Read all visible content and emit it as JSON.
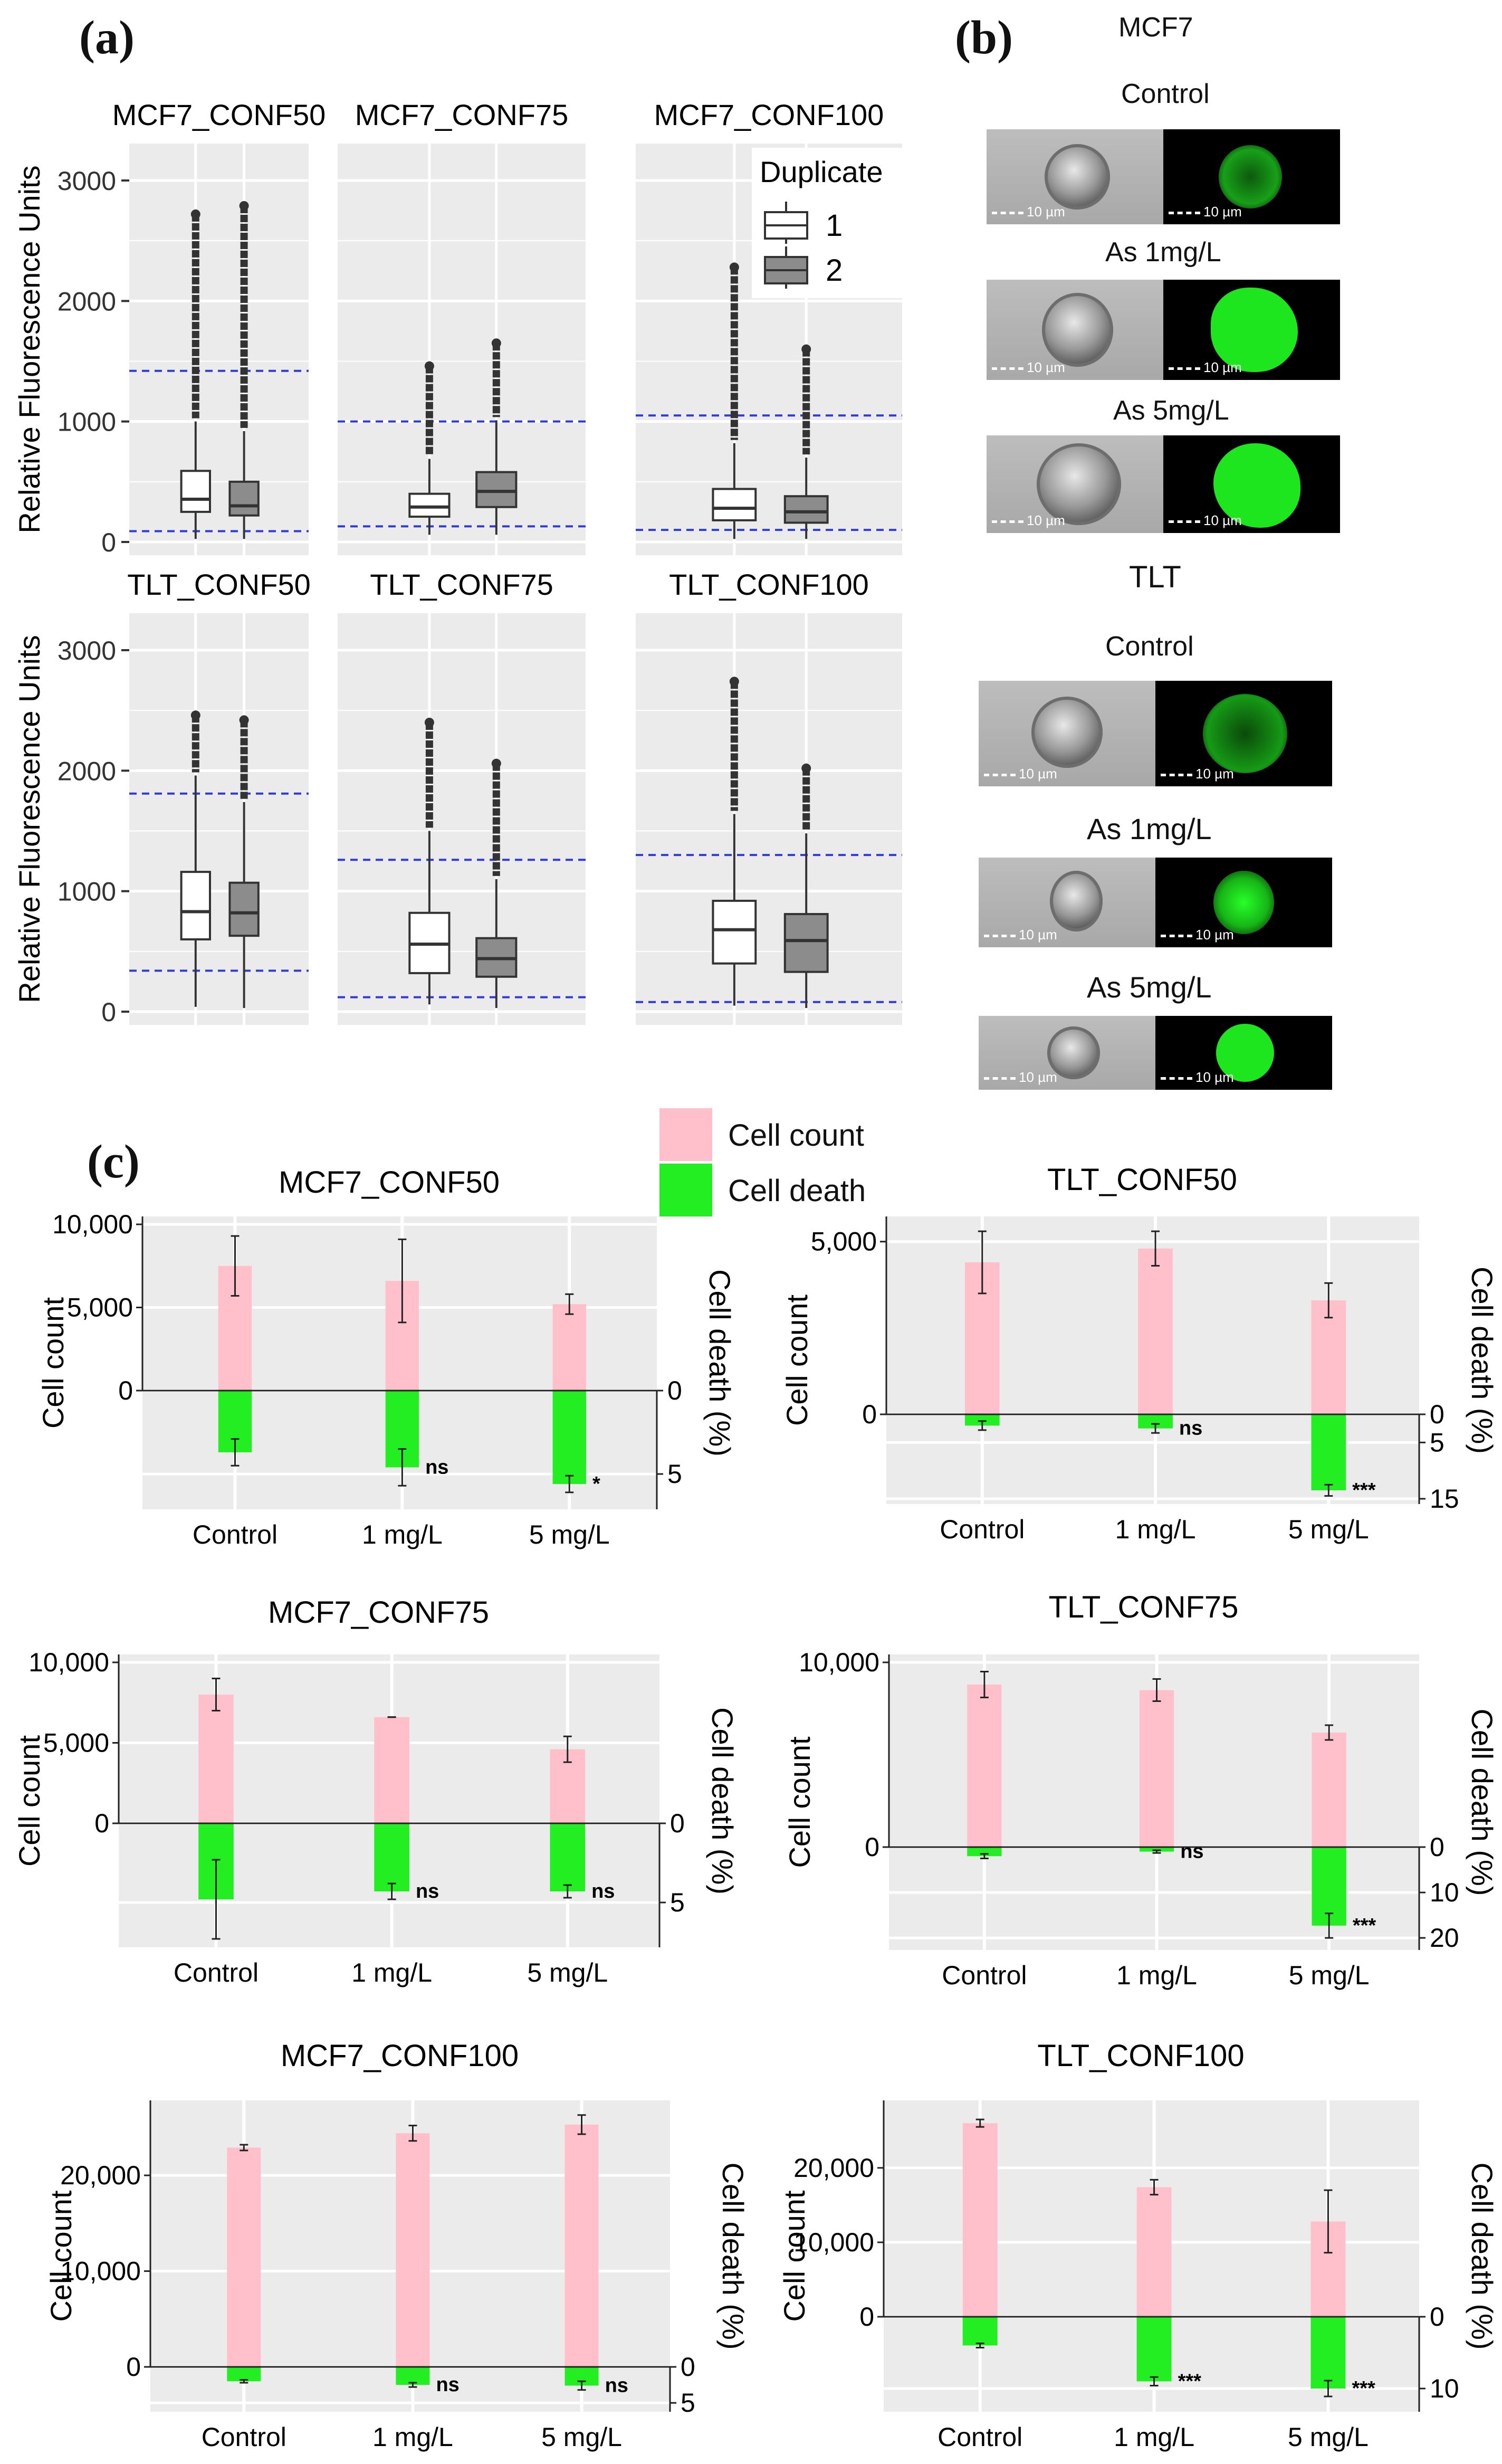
{
  "panel_labels": {
    "a": "(a)",
    "b": "(b)",
    "c": "(c)"
  },
  "colors": {
    "panel_bg": "#ebebeb",
    "grid": "#ffffff",
    "dashed": "#2f3cd6",
    "box1": "#ffffff",
    "box2": "#8c8c8c",
    "count": "#ffc0cb",
    "death": "#22ee22"
  },
  "panel_a": {
    "ylabel": "Relative Fluorescence Units",
    "legend_title": "Duplicate",
    "legend_items": [
      "1",
      "2"
    ],
    "yticks": [
      "0",
      "1000",
      "2000",
      "3000"
    ]
  },
  "chart_data": [
    {
      "type": "box",
      "title": "MCF7_CONF50",
      "ylim": [
        0,
        3000
      ],
      "dashed": [
        90,
        1420
      ],
      "boxes": [
        {
          "dup": "1",
          "q1": 250,
          "median": 355,
          "q3": 590,
          "wlow": 25,
          "whigh": 1000,
          "outlier_top": 2720
        },
        {
          "dup": "2",
          "q1": 220,
          "median": 300,
          "q3": 500,
          "wlow": 25,
          "whigh": 920,
          "outlier_top": 2790
        }
      ]
    },
    {
      "type": "box",
      "title": "MCF7_CONF75",
      "ylim": [
        0,
        3000
      ],
      "dashed": [
        130,
        1000
      ],
      "boxes": [
        {
          "dup": "1",
          "q1": 210,
          "median": 290,
          "q3": 400,
          "wlow": 60,
          "whigh": 690,
          "outlier_top": 1460
        },
        {
          "dup": "2",
          "q1": 290,
          "median": 420,
          "q3": 580,
          "wlow": 60,
          "whigh": 1010,
          "outlier_top": 1650
        }
      ]
    },
    {
      "type": "box",
      "title": "MCF7_CONF100",
      "ylim": [
        0,
        3000
      ],
      "dashed": [
        100,
        1050
      ],
      "boxes": [
        {
          "dup": "1",
          "q1": 180,
          "median": 280,
          "q3": 440,
          "wlow": 25,
          "whigh": 820,
          "outlier_top": 2280
        },
        {
          "dup": "2",
          "q1": 160,
          "median": 250,
          "q3": 380,
          "wlow": 25,
          "whigh": 700,
          "outlier_top": 1600
        }
      ]
    },
    {
      "type": "box",
      "title": "TLT_CONF50",
      "ylim": [
        0,
        3000
      ],
      "dashed": [
        340,
        1810
      ],
      "boxes": [
        {
          "dup": "1",
          "q1": 600,
          "median": 830,
          "q3": 1160,
          "wlow": 40,
          "whigh": 1960,
          "outlier_top": 2460
        },
        {
          "dup": "2",
          "q1": 630,
          "median": 820,
          "q3": 1070,
          "wlow": 30,
          "whigh": 1740,
          "outlier_top": 2420
        }
      ]
    },
    {
      "type": "box",
      "title": "TLT_CONF75",
      "ylim": [
        0,
        3000
      ],
      "dashed": [
        120,
        1260
      ],
      "boxes": [
        {
          "dup": "1",
          "q1": 320,
          "median": 560,
          "q3": 820,
          "wlow": 60,
          "whigh": 1500,
          "outlier_top": 2400
        },
        {
          "dup": "2",
          "q1": 290,
          "median": 440,
          "q3": 610,
          "wlow": 30,
          "whigh": 1100,
          "outlier_top": 2060
        }
      ]
    },
    {
      "type": "box",
      "title": "TLT_CONF100",
      "ylim": [
        0,
        3000
      ],
      "dashed": [
        80,
        1300
      ],
      "boxes": [
        {
          "dup": "1",
          "q1": 400,
          "median": 680,
          "q3": 920,
          "wlow": 50,
          "whigh": 1640,
          "outlier_top": 2740
        },
        {
          "dup": "2",
          "q1": 330,
          "median": 590,
          "q3": 810,
          "wlow": 30,
          "whigh": 1480,
          "outlier_top": 2020
        }
      ]
    },
    {
      "type": "bar",
      "title": "MCF7_CONF50",
      "categories": [
        "Control",
        "1 mg/L",
        "5 mg/L"
      ],
      "count": [
        7500,
        6600,
        5200
      ],
      "count_err": [
        1800,
        2500,
        600
      ],
      "death": [
        3.7,
        4.6,
        5.6
      ],
      "death_err": [
        0.8,
        1.1,
        0.5
      ],
      "sig": [
        "",
        "ns",
        "*"
      ],
      "count_ticks": [
        {
          "v": 0,
          "t": "0"
        },
        {
          "v": 5000,
          "t": "5,000"
        },
        {
          "v": 10000,
          "t": "10,000"
        }
      ],
      "death_ticks": [
        {
          "v": 0,
          "t": "0"
        },
        {
          "v": 5,
          "t": "5"
        }
      ],
      "count_max": 10000,
      "death_max": 6.8,
      "xlabel": "",
      "ylabel": "Cell count",
      "y2label": "Cell death (%)"
    },
    {
      "type": "bar",
      "title": "TLT_CONF50",
      "categories": [
        "Control",
        "1 mg/L",
        "5 mg/L"
      ],
      "count": [
        4400,
        4800,
        3300
      ],
      "count_err": [
        900,
        500,
        500
      ],
      "death": [
        2.0,
        2.5,
        13.5
      ],
      "death_err": [
        0.8,
        0.8,
        1.0
      ],
      "sig": [
        "",
        "ns",
        "***"
      ],
      "count_ticks": [
        {
          "v": 0,
          "t": "0"
        },
        {
          "v": 5000,
          "t": "5,000"
        }
      ],
      "death_ticks": [
        {
          "v": 0,
          "t": "0"
        },
        {
          "v": 5,
          "t": "5"
        },
        {
          "v": 15,
          "t": "15"
        }
      ],
      "count_max": 5500,
      "death_max": 15,
      "xlabel": "",
      "ylabel": "Cell count",
      "y2label": "Cell death (%)"
    },
    {
      "type": "bar",
      "title": "MCF7_CONF75",
      "categories": [
        "Control",
        "1 mg/L",
        "5 mg/L"
      ],
      "count": [
        8000,
        6600,
        4600
      ],
      "count_err": [
        1000,
        0,
        800
      ],
      "death": [
        4.8,
        4.3,
        4.3
      ],
      "death_err": [
        2.5,
        0.5,
        0.4
      ],
      "sig": [
        "",
        "ns",
        "ns"
      ],
      "count_ticks": [
        {
          "v": 0,
          "t": "0"
        },
        {
          "v": 5000,
          "t": "5,000"
        },
        {
          "v": 10000,
          "t": "10,000"
        }
      ],
      "death_ticks": [
        {
          "v": 0,
          "t": "0"
        },
        {
          "v": 5,
          "t": "5"
        }
      ],
      "count_max": 10000,
      "death_max": 7.5,
      "xlabel": "",
      "ylabel": "Cell count",
      "y2label": "Cell death (%)"
    },
    {
      "type": "bar",
      "title": "TLT_CONF75",
      "categories": [
        "Control",
        "1 mg/L",
        "5 mg/L"
      ],
      "count": [
        8800,
        8500,
        6200
      ],
      "count_err": [
        700,
        600,
        400
      ],
      "death": [
        2.0,
        1.0,
        17.3
      ],
      "death_err": [
        0.5,
        0.3,
        2.7
      ],
      "sig": [
        "",
        "ns",
        "***"
      ],
      "count_ticks": [
        {
          "v": 0,
          "t": "0"
        },
        {
          "v": 10000,
          "t": "10,000"
        }
      ],
      "death_ticks": [
        {
          "v": 0,
          "t": "0"
        },
        {
          "v": 10,
          "t": "10"
        },
        {
          "v": 20,
          "t": "20"
        }
      ],
      "count_max": 10000,
      "death_max": 21.5,
      "xlabel": "",
      "ylabel": "Cell count",
      "y2label": "Cell death (%)"
    },
    {
      "type": "bar",
      "title": "MCF7_CONF100",
      "categories": [
        "Control",
        "1 mg/L",
        "5 mg/L"
      ],
      "count": [
        22900,
        24400,
        25300
      ],
      "count_err": [
        300,
        800,
        1000
      ],
      "death": [
        2.0,
        2.5,
        2.6
      ],
      "death_err": [
        0.2,
        0.3,
        0.6
      ],
      "sig": [
        "",
        "ns",
        "ns"
      ],
      "count_ticks": [
        {
          "v": 0,
          "t": "0"
        },
        {
          "v": 10000,
          "t": "10,000"
        },
        {
          "v": 20000,
          "t": "20,000"
        }
      ],
      "death_ticks": [
        {
          "v": 0,
          "t": "0"
        },
        {
          "v": 5,
          "t": "5"
        }
      ],
      "count_max": 27000,
      "death_max": 5.5,
      "xlabel": "",
      "ylabel": "Cell count",
      "y2label": "Cell death (%)"
    },
    {
      "type": "bar",
      "title": "TLT_CONF100",
      "categories": [
        "Control",
        "1 mg/L",
        "5 mg/L"
      ],
      "count": [
        26000,
        17400,
        12800
      ],
      "count_err": [
        500,
        1000,
        4200
      ],
      "death": [
        4.0,
        9.0,
        10.0
      ],
      "death_err": [
        0.3,
        0.6,
        1.1
      ],
      "sig": [
        "",
        "***",
        "***"
      ],
      "count_ticks": [
        {
          "v": 0,
          "t": "0"
        },
        {
          "v": 10000,
          "t": "10,000"
        },
        {
          "v": 20000,
          "t": "20,000"
        }
      ],
      "death_ticks": [
        {
          "v": 0,
          "t": "0"
        },
        {
          "v": 10,
          "t": "10"
        }
      ],
      "count_max": 28000,
      "death_max": 12.5,
      "xlabel": "",
      "ylabel": "Cell count",
      "y2label": "Cell death (%)"
    }
  ],
  "panel_b": {
    "group1": "MCF7",
    "group2": "TLT",
    "scale_bar": "10 µm",
    "rows": [
      {
        "label": "Control",
        "glow": "dim"
      },
      {
        "label": "As 1mg/L",
        "glow": "bright"
      },
      {
        "label": "As 5mg/L",
        "glow": "bright"
      },
      {
        "label": "Control",
        "glow": "dim"
      },
      {
        "label": "As 1mg/L",
        "glow": "medium"
      },
      {
        "label": "As 5mg/L",
        "glow": "bright"
      }
    ]
  },
  "panel_c_legend": {
    "items": [
      "Cell count",
      "Cell death"
    ]
  }
}
